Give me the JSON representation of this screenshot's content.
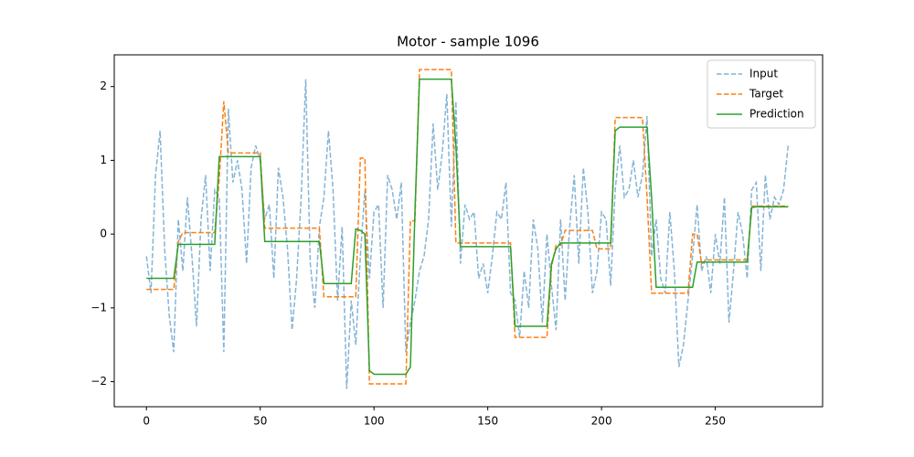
{
  "chart_data": {
    "type": "line",
    "title": "Motor - sample 1096",
    "x": [
      0,
      2,
      4,
      6,
      8,
      10,
      12,
      14,
      16,
      18,
      20,
      22,
      24,
      26,
      28,
      30,
      32,
      34,
      36,
      38,
      40,
      42,
      44,
      46,
      48,
      50,
      52,
      54,
      56,
      58,
      60,
      62,
      64,
      66,
      68,
      70,
      72,
      74,
      76,
      78,
      80,
      82,
      84,
      86,
      88,
      90,
      92,
      94,
      96,
      98,
      100,
      102,
      104,
      106,
      108,
      110,
      112,
      114,
      116,
      118,
      120,
      122,
      124,
      126,
      128,
      130,
      132,
      134,
      136,
      138,
      140,
      142,
      144,
      146,
      148,
      150,
      152,
      154,
      156,
      158,
      160,
      162,
      164,
      166,
      168,
      170,
      172,
      174,
      176,
      178,
      180,
      182,
      184,
      186,
      188,
      190,
      192,
      194,
      196,
      198,
      200,
      202,
      204,
      206,
      208,
      210,
      212,
      214,
      216,
      218,
      220,
      222,
      224,
      226,
      228,
      230,
      232,
      234,
      236,
      238,
      240,
      242,
      244,
      246,
      248,
      250,
      252,
      254,
      256,
      258,
      260,
      262,
      264,
      266,
      268,
      270,
      272,
      274,
      276,
      278,
      280,
      282
    ],
    "series": [
      {
        "name": "Input",
        "color": "#1f77b4",
        "alpha": 0.55,
        "dash": "dashed",
        "values": [
          -0.3,
          -0.8,
          0.8,
          1.4,
          -0.2,
          -1.1,
          -1.6,
          0.2,
          -0.5,
          0.5,
          -0.3,
          -1.25,
          0.2,
          0.8,
          -0.5,
          0.6,
          0.5,
          -1.6,
          1.7,
          0.7,
          1.0,
          0.6,
          -0.4,
          0.9,
          1.2,
          1.0,
          0.2,
          0.4,
          -0.6,
          0.9,
          0.5,
          -0.2,
          -1.3,
          -0.6,
          0.5,
          2.1,
          -0.4,
          -1.0,
          0.1,
          0.5,
          1.4,
          0.6,
          -0.9,
          0.1,
          -2.1,
          -0.9,
          -1.5,
          -0.3,
          0.6,
          -0.6,
          0.3,
          0.4,
          -1.0,
          0.8,
          0.6,
          0.2,
          0.7,
          -1.6,
          -1.2,
          -0.9,
          -0.5,
          -0.3,
          0.2,
          1.5,
          0.6,
          1.1,
          1.9,
          0.1,
          1.8,
          -0.4,
          0.4,
          0.2,
          0.3,
          -0.6,
          -0.4,
          -0.8,
          -0.3,
          0.3,
          0.2,
          0.7,
          -0.8,
          -0.9,
          -1.4,
          -0.5,
          -1.0,
          0.2,
          -0.2,
          -1.2,
          0.0,
          -0.7,
          -1.3,
          0.2,
          -0.9,
          0.1,
          0.8,
          -0.4,
          0.9,
          0.3,
          -0.8,
          -0.5,
          0.3,
          0.2,
          -0.7,
          0.6,
          1.2,
          0.5,
          0.6,
          1.0,
          0.5,
          0.8,
          1.6,
          -0.3,
          0.2,
          -0.6,
          -0.8,
          0.3,
          -0.5,
          -1.8,
          -1.5,
          -0.9,
          -0.3,
          0.4,
          -0.5,
          -0.3,
          -0.8,
          0.0,
          -0.4,
          0.5,
          -1.2,
          -0.5,
          0.3,
          0.0,
          -0.6,
          0.6,
          0.7,
          -0.5,
          0.8,
          0.2,
          0.5,
          0.4,
          0.6,
          1.2
        ]
      },
      {
        "name": "Target",
        "color": "#ff7f0e",
        "alpha": 1,
        "dash": "dashed",
        "values": [
          -0.75,
          -0.75,
          -0.75,
          -0.75,
          -0.75,
          -0.75,
          -0.75,
          -0.1,
          0.02,
          0.02,
          0.02,
          0.02,
          0.02,
          0.02,
          0.02,
          0.02,
          0.75,
          1.8,
          1.1,
          1.1,
          1.1,
          1.1,
          1.1,
          1.1,
          1.1,
          1.1,
          0.08,
          0.08,
          0.08,
          0.08,
          0.08,
          0.08,
          0.08,
          0.08,
          0.08,
          0.08,
          0.08,
          0.08,
          0.08,
          -0.85,
          -0.85,
          -0.85,
          -0.85,
          -0.85,
          -0.85,
          -0.85,
          -0.85,
          1.03,
          1.03,
          -2.03,
          -2.03,
          -2.03,
          -2.03,
          -2.03,
          -2.03,
          -2.03,
          -2.03,
          -2.03,
          0.18,
          0.18,
          2.23,
          2.23,
          2.23,
          2.23,
          2.23,
          2.23,
          2.23,
          2.23,
          -0.12,
          -0.12,
          -0.12,
          -0.12,
          -0.12,
          -0.12,
          -0.12,
          -0.12,
          -0.12,
          -0.12,
          -0.12,
          -0.12,
          -0.12,
          -1.4,
          -1.4,
          -1.4,
          -1.4,
          -1.4,
          -1.4,
          -1.4,
          -1.4,
          -0.45,
          -0.15,
          -0.15,
          0.05,
          0.05,
          0.05,
          0.05,
          0.05,
          0.05,
          0.05,
          -0.2,
          -0.2,
          -0.2,
          -0.2,
          1.58,
          1.58,
          1.58,
          1.58,
          1.58,
          1.58,
          1.58,
          0.5,
          -0.8,
          -0.8,
          -0.8,
          -0.8,
          -0.8,
          -0.8,
          -0.8,
          -0.8,
          -0.8,
          0.0,
          0.0,
          -0.4,
          -0.35,
          -0.35,
          -0.35,
          -0.35,
          -0.35,
          -0.35,
          -0.35,
          -0.35,
          -0.35,
          -0.35,
          0.38,
          0.38,
          0.38,
          0.38,
          0.38,
          0.38,
          0.38,
          0.38,
          0.38
        ]
      },
      {
        "name": "Prediction",
        "color": "#2ca02c",
        "alpha": 1,
        "dash": "solid",
        "values": [
          -0.6,
          -0.6,
          -0.6,
          -0.6,
          -0.6,
          -0.6,
          -0.6,
          -0.14,
          -0.14,
          -0.14,
          -0.14,
          -0.14,
          -0.14,
          -0.14,
          -0.14,
          -0.14,
          1.05,
          1.05,
          1.05,
          1.05,
          1.05,
          1.05,
          1.05,
          1.05,
          1.05,
          1.05,
          -0.1,
          -0.1,
          -0.1,
          -0.1,
          -0.1,
          -0.1,
          -0.1,
          -0.1,
          -0.1,
          -0.1,
          -0.1,
          -0.1,
          -0.1,
          -0.67,
          -0.67,
          -0.67,
          -0.67,
          -0.67,
          -0.67,
          -0.67,
          0.07,
          0.05,
          0.0,
          -1.85,
          -1.9,
          -1.9,
          -1.9,
          -1.9,
          -1.9,
          -1.9,
          -1.9,
          -1.9,
          -1.8,
          0.3,
          2.1,
          2.1,
          2.1,
          2.1,
          2.1,
          2.1,
          2.1,
          2.1,
          1.2,
          -0.17,
          -0.17,
          -0.17,
          -0.17,
          -0.17,
          -0.17,
          -0.17,
          -0.17,
          -0.17,
          -0.17,
          -0.17,
          -0.17,
          -1.25,
          -1.25,
          -1.25,
          -1.25,
          -1.25,
          -1.25,
          -1.25,
          -1.25,
          -0.4,
          -0.2,
          -0.12,
          -0.12,
          -0.12,
          -0.12,
          -0.12,
          -0.12,
          -0.12,
          -0.12,
          -0.12,
          -0.12,
          -0.12,
          -0.12,
          1.4,
          1.45,
          1.45,
          1.45,
          1.45,
          1.45,
          1.45,
          1.45,
          0.5,
          -0.72,
          -0.72,
          -0.72,
          -0.72,
          -0.72,
          -0.72,
          -0.72,
          -0.72,
          -0.72,
          -0.38,
          -0.38,
          -0.38,
          -0.38,
          -0.38,
          -0.38,
          -0.38,
          -0.38,
          -0.38,
          -0.38,
          -0.38,
          -0.38,
          0.36,
          0.37,
          0.37,
          0.37,
          0.37,
          0.37,
          0.37,
          0.37,
          0.37
        ]
      }
    ],
    "xlim": [
      -14.15,
      297.15
    ],
    "xticks": [
      0,
      50,
      100,
      150,
      200,
      250
    ],
    "ylim": [
      -2.34,
      2.43
    ],
    "yticks": [
      {
        "value": -2,
        "label": "−2"
      },
      {
        "value": -1,
        "label": "−1"
      },
      0,
      1,
      2
    ],
    "legend": "upper right"
  }
}
